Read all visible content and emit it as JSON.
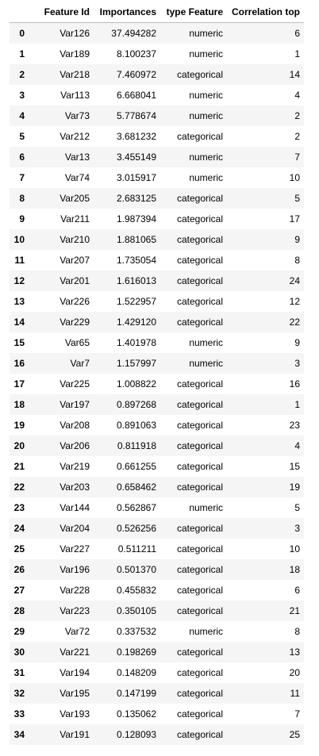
{
  "table": {
    "columns": [
      "",
      "Feature Id",
      "Importances",
      "type Feature",
      "Correlation top"
    ],
    "rows": [
      {
        "index": "0",
        "feature_id": "Var126",
        "importance": "37.494282",
        "type": "numeric",
        "corr_top": "6"
      },
      {
        "index": "1",
        "feature_id": "Var189",
        "importance": "8.100237",
        "type": "numeric",
        "corr_top": "1"
      },
      {
        "index": "2",
        "feature_id": "Var218",
        "importance": "7.460972",
        "type": "categorical",
        "corr_top": "14"
      },
      {
        "index": "3",
        "feature_id": "Var113",
        "importance": "6.668041",
        "type": "numeric",
        "corr_top": "4"
      },
      {
        "index": "4",
        "feature_id": "Var73",
        "importance": "5.778674",
        "type": "numeric",
        "corr_top": "2"
      },
      {
        "index": "5",
        "feature_id": "Var212",
        "importance": "3.681232",
        "type": "categorical",
        "corr_top": "2"
      },
      {
        "index": "6",
        "feature_id": "Var13",
        "importance": "3.455149",
        "type": "numeric",
        "corr_top": "7"
      },
      {
        "index": "7",
        "feature_id": "Var74",
        "importance": "3.015917",
        "type": "numeric",
        "corr_top": "10"
      },
      {
        "index": "8",
        "feature_id": "Var205",
        "importance": "2.683125",
        "type": "categorical",
        "corr_top": "5"
      },
      {
        "index": "9",
        "feature_id": "Var211",
        "importance": "1.987394",
        "type": "categorical",
        "corr_top": "17"
      },
      {
        "index": "10",
        "feature_id": "Var210",
        "importance": "1.881065",
        "type": "categorical",
        "corr_top": "9"
      },
      {
        "index": "11",
        "feature_id": "Var207",
        "importance": "1.735054",
        "type": "categorical",
        "corr_top": "8"
      },
      {
        "index": "12",
        "feature_id": "Var201",
        "importance": "1.616013",
        "type": "categorical",
        "corr_top": "24"
      },
      {
        "index": "13",
        "feature_id": "Var226",
        "importance": "1.522957",
        "type": "categorical",
        "corr_top": "12"
      },
      {
        "index": "14",
        "feature_id": "Var229",
        "importance": "1.429120",
        "type": "categorical",
        "corr_top": "22"
      },
      {
        "index": "15",
        "feature_id": "Var65",
        "importance": "1.401978",
        "type": "numeric",
        "corr_top": "9"
      },
      {
        "index": "16",
        "feature_id": "Var7",
        "importance": "1.157997",
        "type": "numeric",
        "corr_top": "3"
      },
      {
        "index": "17",
        "feature_id": "Var225",
        "importance": "1.008822",
        "type": "categorical",
        "corr_top": "16"
      },
      {
        "index": "18",
        "feature_id": "Var197",
        "importance": "0.897268",
        "type": "categorical",
        "corr_top": "1"
      },
      {
        "index": "19",
        "feature_id": "Var208",
        "importance": "0.891063",
        "type": "categorical",
        "corr_top": "23"
      },
      {
        "index": "20",
        "feature_id": "Var206",
        "importance": "0.811918",
        "type": "categorical",
        "corr_top": "4"
      },
      {
        "index": "21",
        "feature_id": "Var219",
        "importance": "0.661255",
        "type": "categorical",
        "corr_top": "15"
      },
      {
        "index": "22",
        "feature_id": "Var203",
        "importance": "0.658462",
        "type": "categorical",
        "corr_top": "19"
      },
      {
        "index": "23",
        "feature_id": "Var144",
        "importance": "0.562867",
        "type": "numeric",
        "corr_top": "5"
      },
      {
        "index": "24",
        "feature_id": "Var204",
        "importance": "0.526256",
        "type": "categorical",
        "corr_top": "3"
      },
      {
        "index": "25",
        "feature_id": "Var227",
        "importance": "0.511211",
        "type": "categorical",
        "corr_top": "10"
      },
      {
        "index": "26",
        "feature_id": "Var196",
        "importance": "0.501370",
        "type": "categorical",
        "corr_top": "18"
      },
      {
        "index": "27",
        "feature_id": "Var228",
        "importance": "0.455832",
        "type": "categorical",
        "corr_top": "6"
      },
      {
        "index": "28",
        "feature_id": "Var223",
        "importance": "0.350105",
        "type": "categorical",
        "corr_top": "21"
      },
      {
        "index": "29",
        "feature_id": "Var72",
        "importance": "0.337532",
        "type": "numeric",
        "corr_top": "8"
      },
      {
        "index": "30",
        "feature_id": "Var221",
        "importance": "0.198269",
        "type": "categorical",
        "corr_top": "13"
      },
      {
        "index": "31",
        "feature_id": "Var194",
        "importance": "0.148209",
        "type": "categorical",
        "corr_top": "20"
      },
      {
        "index": "32",
        "feature_id": "Var195",
        "importance": "0.147199",
        "type": "categorical",
        "corr_top": "11"
      },
      {
        "index": "33",
        "feature_id": "Var193",
        "importance": "0.135062",
        "type": "categorical",
        "corr_top": "7"
      },
      {
        "index": "34",
        "feature_id": "Var191",
        "importance": "0.128093",
        "type": "categorical",
        "corr_top": "25"
      }
    ]
  }
}
